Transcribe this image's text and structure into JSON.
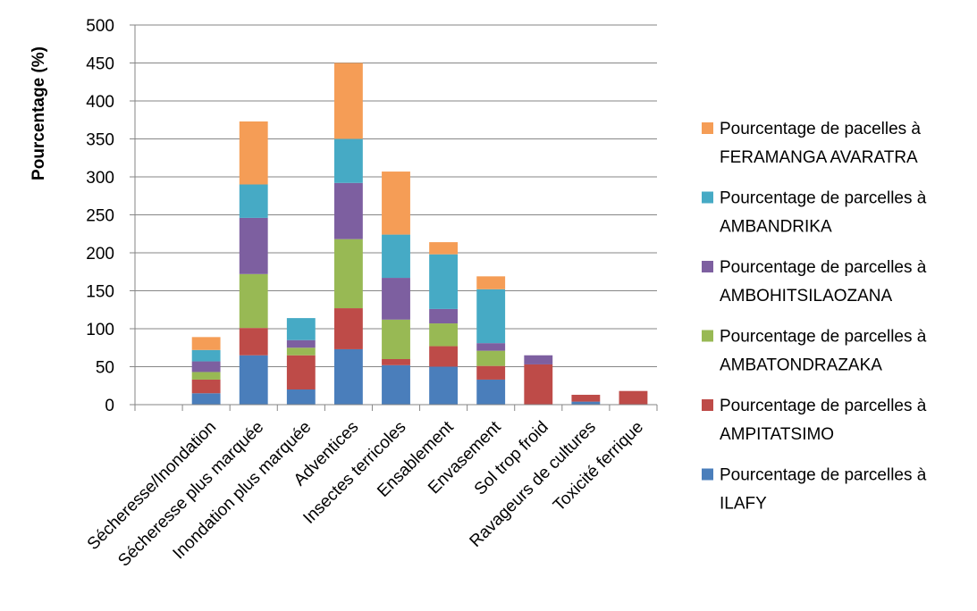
{
  "chart_data": {
    "type": "bar",
    "stacked": true,
    "title": "",
    "xlabel": "",
    "ylabel": "Pourcentage (%)",
    "ylim": [
      0,
      500
    ],
    "yticks": [
      0,
      50,
      100,
      150,
      200,
      250,
      300,
      350,
      400,
      450,
      500
    ],
    "grid": true,
    "legend_position": "right",
    "categories": [
      "",
      "Sécheresse/Inondation",
      "Sécheresse plus marquée",
      "Inondation plus marquée",
      "Adventices",
      "Insectes terricoles",
      "Ensablement",
      "Envasement",
      "Sol trop froid",
      "Ravageurs de cultures",
      "Toxicité ferrique"
    ],
    "series": [
      {
        "name": "Pourcentage de parcelles à ILAFY",
        "color": "#4A7EBB",
        "values": [
          0,
          15,
          65,
          20,
          73,
          52,
          50,
          33,
          0,
          4,
          0
        ]
      },
      {
        "name": "Pourcentage de parcelles à AMPITATSIMO",
        "color": "#BE4B48",
        "values": [
          0,
          18,
          36,
          45,
          54,
          8,
          27,
          18,
          53,
          9,
          18
        ]
      },
      {
        "name": "Pourcentage de parcelles à AMBATONDRAZAKA",
        "color": "#98B954",
        "values": [
          0,
          10,
          71,
          10,
          91,
          52,
          30,
          20,
          0,
          0,
          0
        ]
      },
      {
        "name": "Pourcentage de parcelles à AMBOHITSILAOZANA",
        "color": "#7D5FA0",
        "values": [
          0,
          14,
          74,
          10,
          74,
          55,
          19,
          10,
          12,
          0,
          0
        ]
      },
      {
        "name": "Pourcentage de parcelles à AMBANDRIKA",
        "color": "#46AAC5",
        "values": [
          0,
          15,
          44,
          29,
          58,
          57,
          72,
          71,
          0,
          0,
          0
        ]
      },
      {
        "name": "Pourcentage de pacelles à FERAMANGA AVARATRA",
        "color": "#F59D56",
        "values": [
          0,
          17,
          83,
          0,
          100,
          83,
          16,
          17,
          0,
          0,
          0
        ]
      }
    ]
  },
  "legend": {
    "items": [
      {
        "line1": "Pourcentage de pacelles à",
        "line2": "FERAMANGA AVARATRA",
        "color": "#F59D56"
      },
      {
        "line1": "Pourcentage de parcelles à",
        "line2": "AMBANDRIKA",
        "color": "#46AAC5"
      },
      {
        "line1": "Pourcentage de parcelles à",
        "line2": "AMBOHITSILAOZANA",
        "color": "#7D5FA0"
      },
      {
        "line1": "Pourcentage de parcelles à",
        "line2": "AMBATONDRAZAKA",
        "color": "#98B954"
      },
      {
        "line1": "Pourcentage de parcelles à",
        "line2": "AMPITATSIMO",
        "color": "#BE4B48"
      },
      {
        "line1": "Pourcentage de parcelles à",
        "line2": "ILAFY",
        "color": "#4A7EBB"
      }
    ]
  }
}
